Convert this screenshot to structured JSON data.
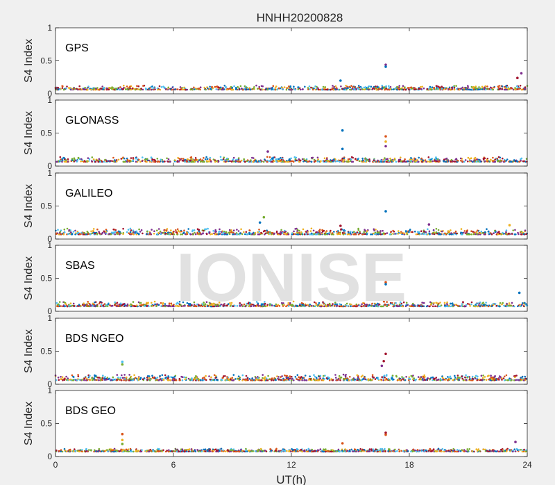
{
  "figure": {
    "title": "HNHH20200828",
    "xlabel": "UT(h)",
    "watermark": "IONISE",
    "background": "#f0f0f0",
    "axes_background": "#ffffff",
    "series_colors": [
      "#0072bd",
      "#d95319",
      "#edb120",
      "#7e2f8e",
      "#77ac30",
      "#4dbeee",
      "#a2142f"
    ]
  },
  "chart_data": [
    {
      "type": "scatter",
      "panel_label": "GPS",
      "ylabel": "S4 Index",
      "xlim": [
        0,
        24
      ],
      "ylim": [
        0,
        1
      ],
      "xticks": [
        0,
        6,
        12,
        18,
        24
      ],
      "yticks": [
        0,
        0.5,
        1
      ],
      "yticklabels": [
        "0",
        "0.5",
        "1"
      ],
      "xticklabels": [],
      "baseline": [
        0.04,
        0.13
      ],
      "spikes": [
        {
          "x": 16.8,
          "y": 0.44,
          "color": "#7e2f8e"
        },
        {
          "x": 16.8,
          "y": 0.41,
          "color": "#0072bd"
        },
        {
          "x": 14.5,
          "y": 0.2,
          "color": "#0072bd"
        },
        {
          "x": 23.7,
          "y": 0.31,
          "color": "#7e2f8e"
        },
        {
          "x": 23.5,
          "y": 0.24,
          "color": "#a2142f"
        }
      ]
    },
    {
      "type": "scatter",
      "panel_label": "GLONASS",
      "ylabel": "S4 Index",
      "xlim": [
        0,
        24
      ],
      "ylim": [
        0,
        1
      ],
      "xticks": [
        0,
        6,
        12,
        18,
        24
      ],
      "yticks": [
        0,
        0.5,
        1
      ],
      "yticklabels": [
        "0",
        "0.5",
        "1"
      ],
      "xticklabels": [],
      "baseline": [
        0.04,
        0.14
      ],
      "spikes": [
        {
          "x": 14.6,
          "y": 0.54,
          "color": "#0072bd"
        },
        {
          "x": 14.6,
          "y": 0.26,
          "color": "#0072bd"
        },
        {
          "x": 16.8,
          "y": 0.45,
          "color": "#d95319"
        },
        {
          "x": 16.8,
          "y": 0.37,
          "color": "#edb120"
        },
        {
          "x": 16.8,
          "y": 0.3,
          "color": "#7e2f8e"
        },
        {
          "x": 10.8,
          "y": 0.22,
          "color": "#7e2f8e"
        }
      ]
    },
    {
      "type": "scatter",
      "panel_label": "GALILEO",
      "ylabel": "S4 Index",
      "xlim": [
        0,
        24
      ],
      "ylim": [
        0,
        1
      ],
      "xticks": [
        0,
        6,
        12,
        18,
        24
      ],
      "yticks": [
        0,
        0.5,
        1
      ],
      "yticklabels": [
        "0",
        "0.5",
        "1"
      ],
      "xticklabels": [],
      "baseline": [
        0.04,
        0.16
      ],
      "spikes": [
        {
          "x": 16.8,
          "y": 0.42,
          "color": "#0072bd"
        },
        {
          "x": 10.6,
          "y": 0.33,
          "color": "#77ac30"
        },
        {
          "x": 10.4,
          "y": 0.25,
          "color": "#0072bd"
        },
        {
          "x": 19.0,
          "y": 0.22,
          "color": "#7e2f8e"
        },
        {
          "x": 14.5,
          "y": 0.2,
          "color": "#a2142f"
        },
        {
          "x": 23.1,
          "y": 0.21,
          "color": "#edb120"
        }
      ]
    },
    {
      "type": "scatter",
      "panel_label": "SBAS",
      "ylabel": "S4 Index",
      "xlim": [
        0,
        24
      ],
      "ylim": [
        0,
        1
      ],
      "xticks": [
        0,
        6,
        12,
        18,
        24
      ],
      "yticks": [
        0,
        0.5,
        1
      ],
      "yticklabels": [
        "0",
        "0.5",
        "1"
      ],
      "xticklabels": [],
      "baseline": [
        0.05,
        0.15
      ],
      "spikes": [
        {
          "x": 16.8,
          "y": 0.44,
          "color": "#d95319"
        },
        {
          "x": 16.8,
          "y": 0.41,
          "color": "#0072bd"
        },
        {
          "x": 23.6,
          "y": 0.28,
          "color": "#0072bd"
        }
      ]
    },
    {
      "type": "scatter",
      "panel_label": "BDS NGEO",
      "ylabel": "S4 Index",
      "xlim": [
        0,
        24
      ],
      "ylim": [
        0,
        1
      ],
      "xticks": [
        0,
        6,
        12,
        18,
        24
      ],
      "yticks": [
        0,
        0.5,
        1
      ],
      "yticklabels": [
        "0",
        "0.5",
        "1"
      ],
      "xticklabels": [],
      "baseline": [
        0.03,
        0.15
      ],
      "spikes": [
        {
          "x": 16.8,
          "y": 0.46,
          "color": "#a2142f"
        },
        {
          "x": 16.7,
          "y": 0.35,
          "color": "#a2142f"
        },
        {
          "x": 16.6,
          "y": 0.28,
          "color": "#7e2f8e"
        },
        {
          "x": 3.4,
          "y": 0.34,
          "color": "#4dbeee"
        },
        {
          "x": 3.4,
          "y": 0.3,
          "color": "#77ac30"
        }
      ]
    },
    {
      "type": "scatter",
      "panel_label": "BDS GEO",
      "ylabel": "S4 Index",
      "xlim": [
        0,
        24
      ],
      "ylim": [
        0,
        1
      ],
      "xticks": [
        0,
        6,
        12,
        18,
        24
      ],
      "yticks": [
        0,
        0.5,
        1
      ],
      "yticklabels": [
        "0",
        "0.5",
        "1"
      ],
      "xticklabels": [
        "0",
        "6",
        "12",
        "18",
        "24"
      ],
      "baseline": [
        0.06,
        0.12
      ],
      "spikes": [
        {
          "x": 3.4,
          "y": 0.34,
          "color": "#d95319"
        },
        {
          "x": 3.4,
          "y": 0.25,
          "color": "#edb120"
        },
        {
          "x": 3.4,
          "y": 0.19,
          "color": "#77ac30"
        },
        {
          "x": 16.8,
          "y": 0.36,
          "color": "#a2142f"
        },
        {
          "x": 16.8,
          "y": 0.33,
          "color": "#d95319"
        },
        {
          "x": 14.6,
          "y": 0.2,
          "color": "#d95319"
        },
        {
          "x": 23.4,
          "y": 0.22,
          "color": "#7e2f8e"
        }
      ]
    }
  ]
}
